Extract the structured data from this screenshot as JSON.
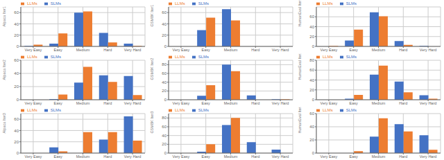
{
  "chart_data": [
    {
      "type": "bar",
      "categories": [
        "Very Easy",
        "Easy",
        "Medium",
        "Hard",
        "Very Hard"
      ],
      "series": [
        {
          "name": "SLMs",
          "color": "#4472C4",
          "values": [
            1,
            5,
            60,
            24,
            5
          ]
        },
        {
          "name": "LLMs",
          "color": "#ED7D31",
          "values": [
            3,
            23,
            62,
            7,
            1
          ]
        }
      ],
      "ylim": [
        0,
        70
      ],
      "yticks": [
        0,
        20,
        40,
        60
      ],
      "ylabel": "Alpaca Iter1",
      "grid": true,
      "legend": "upper left"
    },
    {
      "type": "bar",
      "categories": [
        "Very Easy",
        "Easy",
        "Medium",
        "Hard",
        "Very Hard"
      ],
      "series": [
        {
          "name": "SLMs",
          "color": "#4472C4",
          "values": [
            0,
            29,
            66,
            0,
            0
          ]
        },
        {
          "name": "LLMs",
          "color": "#ED7D31",
          "values": [
            0,
            51,
            46,
            0,
            0
          ]
        }
      ],
      "ylim": [
        0,
        70
      ],
      "yticks": [
        0,
        20,
        40,
        60
      ],
      "ylabel": "GSM8K Iter1",
      "grid": true,
      "legend": "upper left"
    },
    {
      "type": "bar",
      "categories": [
        "Very Easy",
        "Easy",
        "Medium",
        "Hard",
        "Very Hard"
      ],
      "series": [
        {
          "name": "SLMs",
          "color": "#4472C4",
          "values": [
            0,
            12,
            69,
            11,
            1
          ]
        },
        {
          "name": "LLMs",
          "color": "#ED7D31",
          "values": [
            1,
            34,
            61,
            3,
            0
          ]
        }
      ],
      "ylim": [
        0,
        80
      ],
      "yticks": [
        0,
        20,
        40,
        60
      ],
      "ylabel": "HumanEval Iter1",
      "grid": true,
      "legend": "upper left"
    },
    {
      "type": "bar",
      "categories": [
        "Very Easy",
        "Easy",
        "Medium",
        "Hard",
        "Very Hard"
      ],
      "series": [
        {
          "name": "SLMs",
          "color": "#4472C4",
          "values": [
            0,
            1,
            26,
            37,
            36
          ]
        },
        {
          "name": "LLMs",
          "color": "#ED7D31",
          "values": [
            0,
            8,
            50,
            27,
            7
          ]
        }
      ],
      "ylim": [
        0,
        60
      ],
      "yticks": [
        0,
        20,
        40,
        60
      ],
      "ylabel": "Alpaca Iter2",
      "grid": true,
      "legend": "upper left"
    },
    {
      "type": "bar",
      "categories": [
        "Very Easy",
        "Easy",
        "Medium",
        "Hard",
        "Very Hard"
      ],
      "series": [
        {
          "name": "SLMs",
          "color": "#4472C4",
          "values": [
            0,
            9,
            80,
            10,
            1
          ]
        },
        {
          "name": "LLMs",
          "color": "#ED7D31",
          "values": [
            0,
            33,
            65,
            0,
            1
          ]
        }
      ],
      "ylim": [
        0,
        90
      ],
      "yticks": [
        0,
        20,
        40,
        60,
        80
      ],
      "ylabel": "GSM8K Iter2",
      "grid": true,
      "legend": "upper left"
    },
    {
      "type": "bar",
      "categories": [
        "Very Easy",
        "Easy",
        "Medium",
        "Hard",
        "Very Hard"
      ],
      "series": [
        {
          "name": "SLMs",
          "color": "#4472C4",
          "values": [
            0,
            2,
            51,
            37,
            9
          ]
        },
        {
          "name": "LLMs",
          "color": "#ED7D31",
          "values": [
            0,
            10,
            69,
            15,
            2
          ]
        }
      ],
      "ylim": [
        0,
        80
      ],
      "yticks": [
        0,
        20,
        40,
        60,
        80
      ],
      "ylabel": "HumanEval Iter2",
      "grid": true,
      "legend": "upper left"
    },
    {
      "type": "bar",
      "categories": [
        "Very Easy",
        "Easy",
        "Medium",
        "Hard",
        "Very Hard"
      ],
      "series": [
        {
          "name": "SLMs",
          "color": "#4472C4",
          "values": [
            0,
            10,
            0,
            24,
            65
          ]
        },
        {
          "name": "LLMs",
          "color": "#ED7D31",
          "values": [
            0,
            3,
            37,
            37,
            22
          ]
        }
      ],
      "ylim": [
        0,
        70
      ],
      "yticks": [
        0,
        20,
        40,
        60
      ],
      "ylabel": "Alpaca Iter3",
      "grid": true,
      "legend": "upper left"
    },
    {
      "type": "bar",
      "categories": [
        "Very Easy",
        "Easy",
        "Medium",
        "Hard",
        "Very Hard"
      ],
      "series": [
        {
          "name": "SLMs",
          "color": "#4472C4",
          "values": [
            0,
            3,
            64,
            25,
            8
          ]
        },
        {
          "name": "LLMs",
          "color": "#ED7D31",
          "values": [
            0,
            20,
            80,
            0,
            0
          ]
        }
      ],
      "ylim": [
        0,
        90
      ],
      "yticks": [
        0,
        20,
        40,
        60,
        80
      ],
      "ylabel": "GSM8K Iter3",
      "grid": true,
      "legend": "upper left"
    },
    {
      "type": "bar",
      "categories": [
        "Very Easy",
        "Easy",
        "Medium",
        "Hard",
        "Very Hard"
      ],
      "series": [
        {
          "name": "SLMs",
          "color": "#4472C4",
          "values": [
            0,
            0,
            25,
            44,
            27
          ]
        },
        {
          "name": "LLMs",
          "color": "#ED7D31",
          "values": [
            0,
            3,
            53,
            33,
            5
          ]
        }
      ],
      "ylim": [
        0,
        60
      ],
      "yticks": [
        0,
        20,
        40,
        60
      ],
      "ylabel": "HumanEval Iter3",
      "grid": true,
      "legend": "upper left"
    }
  ]
}
